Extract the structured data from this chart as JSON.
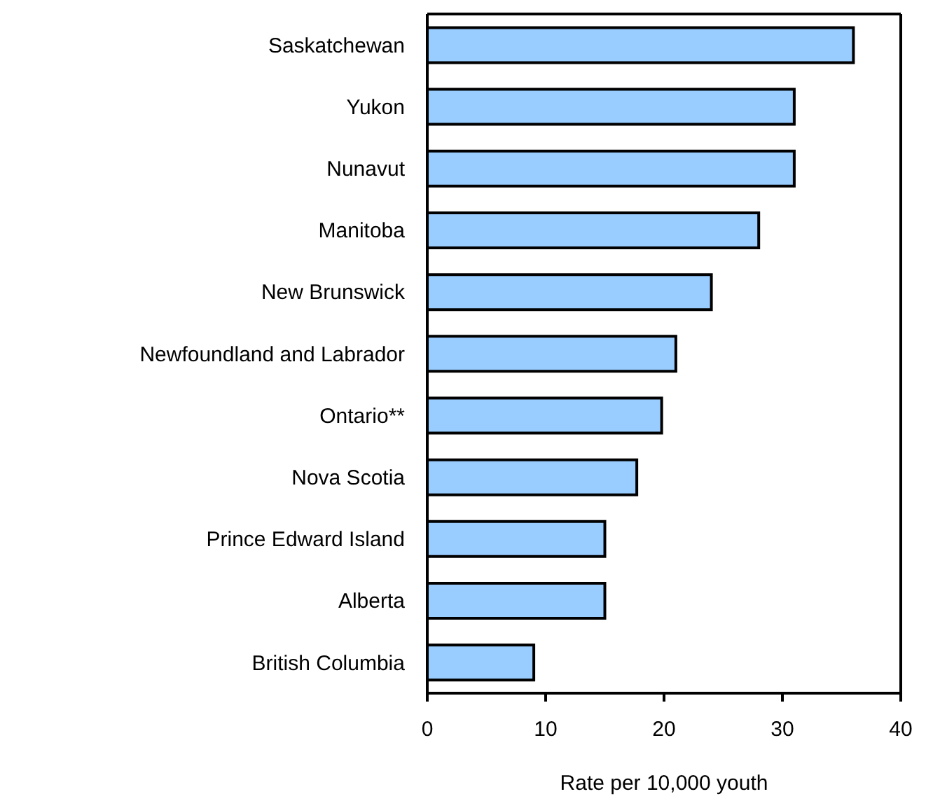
{
  "chart_data": {
    "type": "bar",
    "orientation": "horizontal",
    "xlabel": "Rate per 10,000 youth",
    "categories": [
      "Saskatchewan",
      "Yukon",
      "Nunavut",
      "Manitoba",
      "New Brunswick",
      "Newfoundland and Labrador",
      "Ontario**",
      "Nova Scotia",
      "Prince Edward Island",
      "Alberta",
      "British Columbia"
    ],
    "values": [
      36,
      31,
      31,
      28,
      24,
      21,
      19.8,
      17.7,
      15,
      15,
      9
    ],
    "color": "#99ccff",
    "xlim": [
      0,
      40
    ],
    "xticks": [
      0,
      10,
      20,
      30,
      40
    ],
    "grid": false,
    "legend": false
  }
}
